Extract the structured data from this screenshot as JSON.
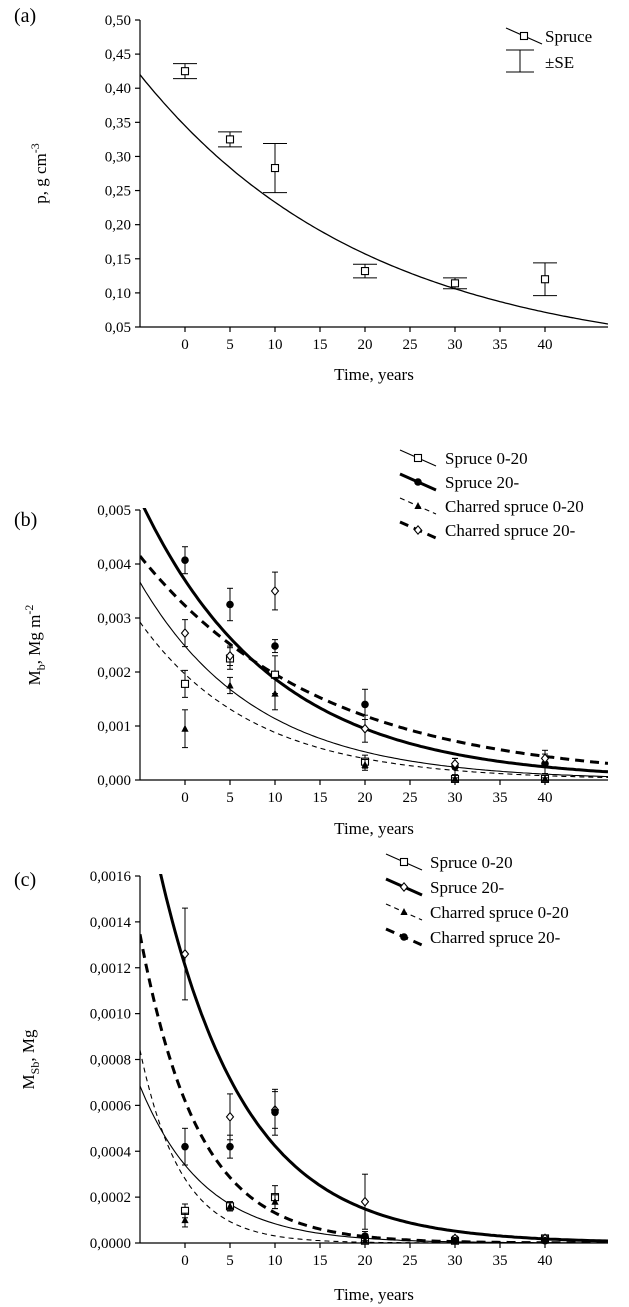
{
  "chart_data": [
    {
      "type": "scatter",
      "panel_label": "(a)",
      "xlabel": "Time, years",
      "ylabel_main": "p, g cm",
      "ylabel_sup": "-3",
      "ylabel_sub": "",
      "x_ticks": [
        "0",
        "5",
        "10",
        "15",
        "20",
        "25",
        "30",
        "35",
        "40"
      ],
      "y_ticks": [
        "0,05",
        "0,10",
        "0,15",
        "0,20",
        "0,25",
        "0,30",
        "0,35",
        "0,40",
        "0,45",
        "0,50"
      ],
      "xlim": [
        -5,
        47
      ],
      "ylim": [
        0.05,
        0.5
      ],
      "legend_labels": [
        "Spruce",
        "±SE"
      ],
      "series": [
        {
          "name": "Spruce",
          "marker": "square",
          "line": "thin",
          "x": [
            0,
            5,
            10,
            20,
            30,
            40
          ],
          "y": [
            0.425,
            0.325,
            0.283,
            0.132,
            0.114,
            0.12
          ],
          "se": [
            0.011,
            0.011,
            0.036,
            0.01,
            0.008,
            0.024
          ]
        }
      ],
      "fits": [
        {
          "series": 0,
          "a": 0.345,
          "k": 0.0393,
          "width": 1.3,
          "dash": ""
        }
      ]
    },
    {
      "type": "scatter",
      "panel_label": "(b)",
      "xlabel": "Time, years",
      "ylabel_main": "M",
      "ylabel_sub": "b",
      "ylabel_sup": "",
      "ylabel_rest": ", Mg m",
      "ylabel_rest_sup": "-2",
      "x_ticks": [
        "0",
        "5",
        "10",
        "15",
        "20",
        "25",
        "30",
        "35",
        "40"
      ],
      "y_ticks": [
        "0,000",
        "0,001",
        "0,002",
        "0,003",
        "0,004",
        "0,005"
      ],
      "xlim": [
        -5,
        47
      ],
      "ylim": [
        0,
        0.005
      ],
      "legend_labels": [
        "Spruce 0-20",
        "Spruce 20-",
        "Charred spruce 0-20",
        "Charred spruce 20-"
      ],
      "series": [
        {
          "name": "Spruce 0-20",
          "marker": "square",
          "line": "thin",
          "x": [
            0,
            5,
            10,
            20,
            30,
            40
          ],
          "y": [
            0.00178,
            0.00225,
            0.00195,
            0.00034,
            2e-05,
            2e-05
          ],
          "se": [
            0.00025,
            0.0002,
            0.00035,
            0.00012,
            2e-05,
            2e-05
          ]
        },
        {
          "name": "Spruce 20-",
          "marker": "dot",
          "line": "thick",
          "x": [
            0,
            5,
            10,
            20,
            30,
            40
          ],
          "y": [
            0.00407,
            0.00325,
            0.00248,
            0.0014,
            0.00025,
            0.0003
          ],
          "se": [
            0.00025,
            0.0003,
            0.00012,
            0.00028,
            0.00015,
            0.00018
          ]
        },
        {
          "name": "Charred spruce 0-20",
          "marker": "triangle",
          "line": "thin-dashed",
          "x": [
            0,
            5,
            10,
            20,
            30,
            40
          ],
          "y": [
            0.00095,
            0.00175,
            0.0016,
            0.00028,
            2e-05,
            2e-05
          ],
          "se": [
            0.00035,
            0.00015,
            0.0003,
            0.0001,
            2e-05,
            2e-05
          ]
        },
        {
          "name": "Charred spruce 20-",
          "marker": "diamond",
          "line": "thick-dashed",
          "x": [
            0,
            5,
            10,
            20,
            30,
            40
          ],
          "y": [
            0.00272,
            0.0023,
            0.0035,
            0.00095,
            0.0003,
            0.0004
          ],
          "se": [
            0.00025,
            0.00018,
            0.00035,
            0.00025,
            0.0001,
            0.00015
          ]
        }
      ],
      "fits": [
        {
          "series": 0,
          "a": 0.00248,
          "k": 0.078,
          "width": 1.1,
          "dash": ""
        },
        {
          "series": 1,
          "a": 0.0037,
          "k": 0.068,
          "width": 3,
          "dash": ""
        },
        {
          "series": 2,
          "a": 0.00196,
          "k": 0.08,
          "width": 1.1,
          "dash": "5,4"
        },
        {
          "series": 3,
          "a": 0.00323,
          "k": 0.05,
          "width": 3,
          "dash": "9,6"
        }
      ]
    },
    {
      "type": "scatter",
      "panel_label": "(c)",
      "xlabel": "Time, years",
      "ylabel_main": "M",
      "ylabel_sub": "Sb",
      "ylabel_sup": "",
      "ylabel_rest": ", Mg",
      "ylabel_rest_sup": "",
      "x_ticks": [
        "0",
        "5",
        "10",
        "15",
        "20",
        "25",
        "30",
        "35",
        "40"
      ],
      "y_ticks": [
        "0,0000",
        "0,0002",
        "0,0004",
        "0,0006",
        "0,0008",
        "0,0010",
        "0,0012",
        "0,0014",
        "0,0016"
      ],
      "xlim": [
        -5,
        47
      ],
      "ylim": [
        0,
        0.0016
      ],
      "legend_labels": [
        "Spruce 0-20",
        "Spruce 20-",
        "Charred spruce 0-20",
        "Charred spruce 20-"
      ],
      "series": [
        {
          "name": "Spruce 0-20",
          "marker": "square",
          "line": "thin",
          "x": [
            0,
            5,
            10,
            20,
            30,
            40
          ],
          "y": [
            0.00014,
            0.00016,
            0.0002,
            1e-05,
            1e-05,
            2e-05
          ],
          "se": [
            3e-05,
            2e-05,
            5e-05,
            1e-05,
            1e-05,
            1e-05
          ]
        },
        {
          "name": "Spruce 20-",
          "marker": "diamond",
          "line": "thick",
          "x": [
            0,
            5,
            10,
            20,
            30,
            40
          ],
          "y": [
            0.00126,
            0.00055,
            0.00058,
            0.00018,
            2e-05,
            2e-05
          ],
          "se": [
            0.0002,
            0.0001,
            8e-05,
            0.00012,
            1e-05,
            1e-05
          ]
        },
        {
          "name": "Charred spruce 0-20",
          "marker": "triangle",
          "line": "thin-dashed",
          "x": [
            0,
            5,
            10,
            20,
            30,
            40
          ],
          "y": [
            0.0001,
            0.00016,
            0.00018,
            1e-05,
            1e-05,
            1e-05
          ],
          "se": [
            3e-05,
            2e-05,
            3e-05,
            1e-05,
            1e-05,
            1e-05
          ]
        },
        {
          "name": "Charred spruce 20-",
          "marker": "dot",
          "line": "thick-dashed",
          "x": [
            0,
            5,
            10,
            20,
            30,
            40
          ],
          "y": [
            0.00042,
            0.00042,
            0.00057,
            3e-05,
            1e-05,
            1e-05
          ],
          "se": [
            8e-05,
            5e-05,
            0.0001,
            2e-05,
            1e-05,
            1e-05
          ]
        }
      ],
      "fits": [
        {
          "series": 0,
          "a": 0.00034,
          "k": 0.14,
          "width": 1.1,
          "dash": ""
        },
        {
          "series": 1,
          "a": 0.00121,
          "k": 0.105,
          "width": 3,
          "dash": ""
        },
        {
          "series": 2,
          "a": 0.00028,
          "k": 0.22,
          "width": 1.1,
          "dash": "5,4"
        },
        {
          "series": 3,
          "a": 0.00062,
          "k": 0.155,
          "width": 3,
          "dash": "9,6"
        }
      ]
    }
  ]
}
